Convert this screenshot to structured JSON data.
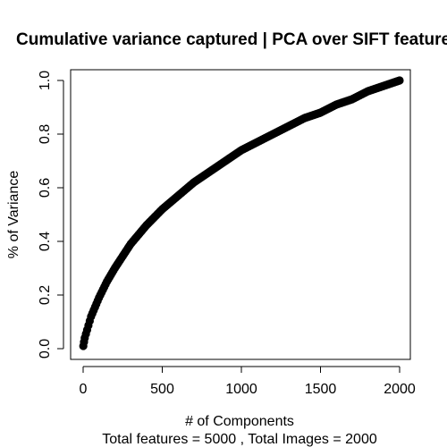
{
  "chart_data": {
    "type": "scatter",
    "title": "Cumulative variance captured | PCA over SIFT features",
    "xlabel": "# of Components",
    "xlabel_sub": "Total features =  5000 , Total Images =  2000",
    "ylabel": "% of Variance",
    "xlim": [
      0,
      2000
    ],
    "ylim": [
      0.0,
      1.0
    ],
    "x_ticks": [
      0,
      500,
      1000,
      1500,
      2000
    ],
    "x_tick_labels": [
      "0",
      "500",
      "1000",
      "1500",
      "2000"
    ],
    "y_ticks": [
      0.0,
      0.2,
      0.4,
      0.6,
      0.8,
      1.0
    ],
    "y_tick_labels": [
      "0.0",
      "0.2",
      "0.4",
      "0.6",
      "0.8",
      "1.0"
    ],
    "grid": false,
    "legend": "none",
    "series": [
      {
        "color": "#000000",
        "points": [
          [
            1,
            0.01
          ],
          [
            10,
            0.04
          ],
          [
            25,
            0.07
          ],
          [
            50,
            0.12
          ],
          [
            100,
            0.19
          ],
          [
            150,
            0.25
          ],
          [
            200,
            0.3
          ],
          [
            300,
            0.39
          ],
          [
            400,
            0.46
          ],
          [
            500,
            0.52
          ],
          [
            600,
            0.57
          ],
          [
            700,
            0.62
          ],
          [
            800,
            0.66
          ],
          [
            900,
            0.7
          ],
          [
            1000,
            0.74
          ],
          [
            1100,
            0.77
          ],
          [
            1200,
            0.8
          ],
          [
            1300,
            0.83
          ],
          [
            1400,
            0.86
          ],
          [
            1500,
            0.88
          ],
          [
            1600,
            0.91
          ],
          [
            1700,
            0.93
          ],
          [
            1800,
            0.96
          ],
          [
            1900,
            0.98
          ],
          [
            2000,
            1.0
          ]
        ]
      }
    ]
  }
}
